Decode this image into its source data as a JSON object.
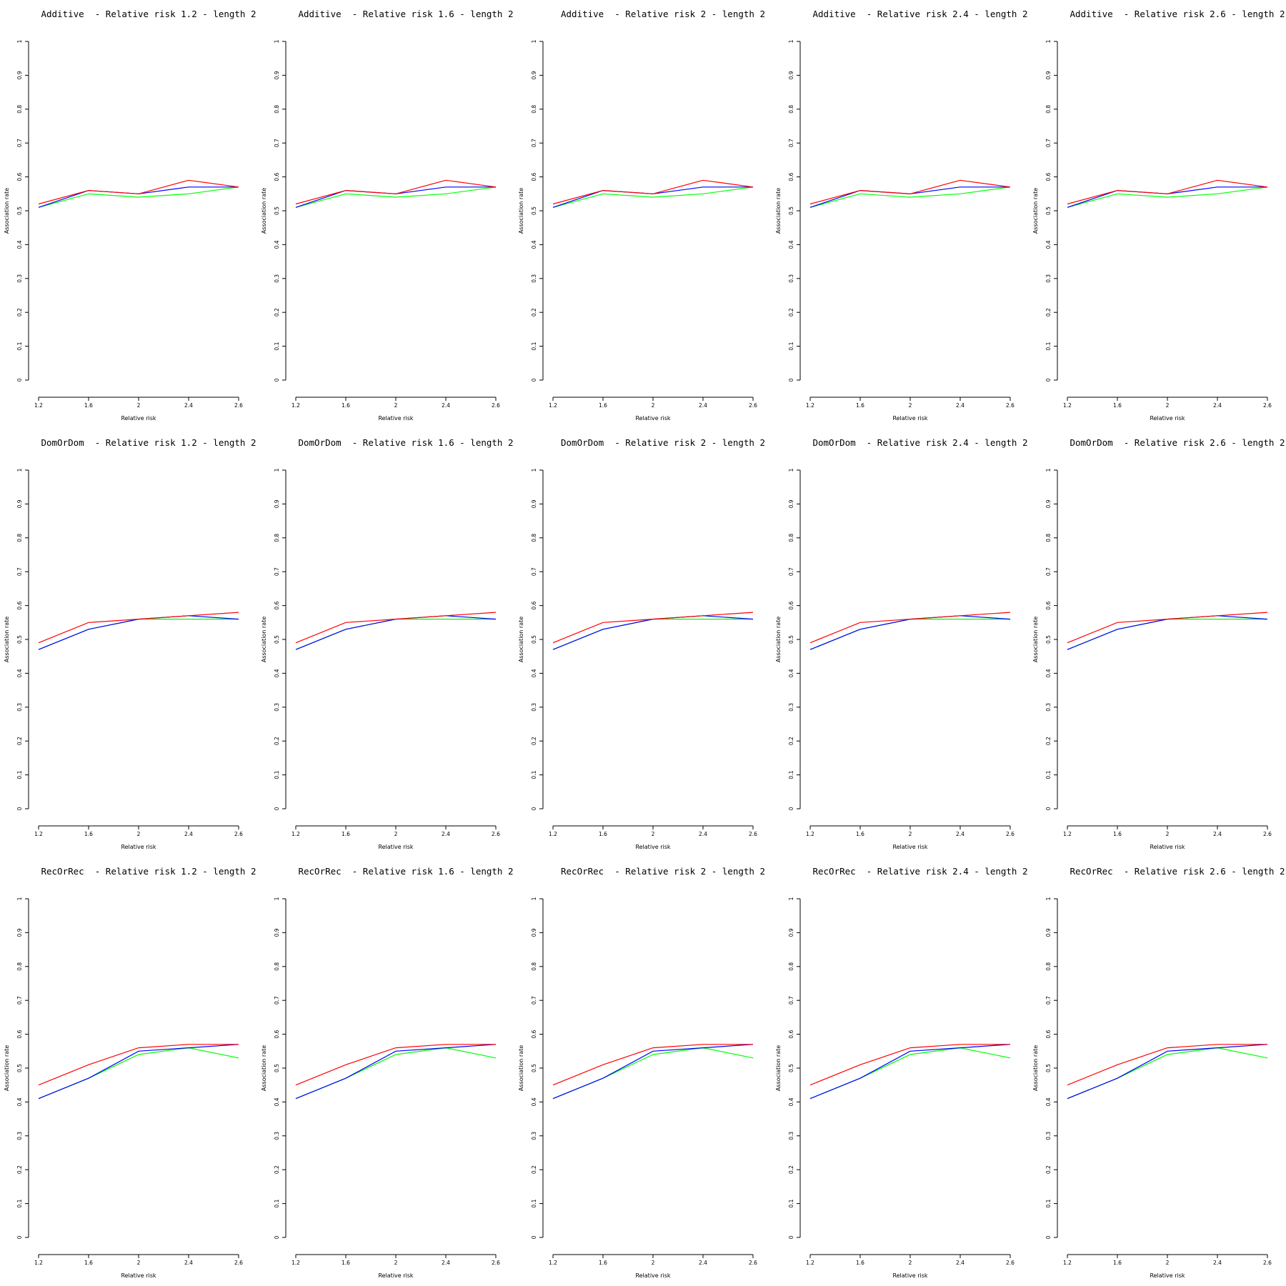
{
  "colors": {
    "series": [
      "#ff0000",
      "#0000ff",
      "#00ff00"
    ],
    "axis": "#000000",
    "background": "#ffffff"
  },
  "chart_data": [
    {
      "type": "line",
      "title": "Additive  - Relative risk 1.2 - length 2",
      "xlabel": "Relative risk",
      "ylabel": "Association rate",
      "x": [
        "1.2",
        "1.6",
        "2",
        "2.4",
        "2.6"
      ],
      "yticks": [
        "0",
        "0.1",
        "0.2",
        "0.3",
        "0.4",
        "0.5",
        "0.6",
        "0.7",
        "0.8",
        "0.9",
        "1"
      ],
      "ylim": [
        0,
        1
      ],
      "series": [
        {
          "color": "#ff0000",
          "values": [
            0.52,
            0.56,
            0.55,
            0.59,
            0.57
          ]
        },
        {
          "color": "#0000ff",
          "values": [
            0.51,
            0.56,
            0.55,
            0.57,
            0.57
          ]
        },
        {
          "color": "#00ff00",
          "values": [
            0.51,
            0.55,
            0.54,
            0.55,
            0.57
          ]
        }
      ]
    },
    {
      "type": "line",
      "title": "Additive  - Relative risk 1.6 - length 2",
      "xlabel": "Relative risk",
      "ylabel": "Association rate",
      "x": [
        "1.2",
        "1.6",
        "2",
        "2.4",
        "2.6"
      ],
      "yticks": [
        "0",
        "0.1",
        "0.2",
        "0.3",
        "0.4",
        "0.5",
        "0.6",
        "0.7",
        "0.8",
        "0.9",
        "1"
      ],
      "ylim": [
        0,
        1
      ],
      "series": [
        {
          "color": "#ff0000",
          "values": [
            0.52,
            0.56,
            0.55,
            0.59,
            0.57
          ]
        },
        {
          "color": "#0000ff",
          "values": [
            0.51,
            0.56,
            0.55,
            0.57,
            0.57
          ]
        },
        {
          "color": "#00ff00",
          "values": [
            0.51,
            0.55,
            0.54,
            0.55,
            0.57
          ]
        }
      ]
    },
    {
      "type": "line",
      "title": "Additive  - Relative risk 2 - length 2",
      "xlabel": "Relative risk",
      "ylabel": "Association rate",
      "x": [
        "1.2",
        "1.6",
        "2",
        "2.4",
        "2.6"
      ],
      "yticks": [
        "0",
        "0.1",
        "0.2",
        "0.3",
        "0.4",
        "0.5",
        "0.6",
        "0.7",
        "0.8",
        "0.9",
        "1"
      ],
      "ylim": [
        0,
        1
      ],
      "series": [
        {
          "color": "#ff0000",
          "values": [
            0.52,
            0.56,
            0.55,
            0.59,
            0.57
          ]
        },
        {
          "color": "#0000ff",
          "values": [
            0.51,
            0.56,
            0.55,
            0.57,
            0.57
          ]
        },
        {
          "color": "#00ff00",
          "values": [
            0.51,
            0.55,
            0.54,
            0.55,
            0.57
          ]
        }
      ]
    },
    {
      "type": "line",
      "title": "Additive  - Relative risk 2.4 - length 2",
      "xlabel": "Relative risk",
      "ylabel": "Association rate",
      "x": [
        "1.2",
        "1.6",
        "2",
        "2.4",
        "2.6"
      ],
      "yticks": [
        "0",
        "0.1",
        "0.2",
        "0.3",
        "0.4",
        "0.5",
        "0.6",
        "0.7",
        "0.8",
        "0.9",
        "1"
      ],
      "ylim": [
        0,
        1
      ],
      "series": [
        {
          "color": "#ff0000",
          "values": [
            0.52,
            0.56,
            0.55,
            0.59,
            0.57
          ]
        },
        {
          "color": "#0000ff",
          "values": [
            0.51,
            0.56,
            0.55,
            0.57,
            0.57
          ]
        },
        {
          "color": "#00ff00",
          "values": [
            0.51,
            0.55,
            0.54,
            0.55,
            0.57
          ]
        }
      ]
    },
    {
      "type": "line",
      "title": "Additive  - Relative risk 2.6 - length 2",
      "xlabel": "Relative risk",
      "ylabel": "Association rate",
      "x": [
        "1.2",
        "1.6",
        "2",
        "2.4",
        "2.6"
      ],
      "yticks": [
        "0",
        "0.1",
        "0.2",
        "0.3",
        "0.4",
        "0.5",
        "0.6",
        "0.7",
        "0.8",
        "0.9",
        "1"
      ],
      "ylim": [
        0,
        1
      ],
      "series": [
        {
          "color": "#ff0000",
          "values": [
            0.52,
            0.56,
            0.55,
            0.59,
            0.57
          ]
        },
        {
          "color": "#0000ff",
          "values": [
            0.51,
            0.56,
            0.55,
            0.57,
            0.57
          ]
        },
        {
          "color": "#00ff00",
          "values": [
            0.51,
            0.55,
            0.54,
            0.55,
            0.57
          ]
        }
      ]
    },
    {
      "type": "line",
      "title": "DomOrDom  - Relative risk 1.2 - length 2",
      "xlabel": "Relative risk",
      "ylabel": "Association rate",
      "x": [
        "1.2",
        "1.6",
        "2",
        "2.4",
        "2.6"
      ],
      "yticks": [
        "0",
        "0.1",
        "0.2",
        "0.3",
        "0.4",
        "0.5",
        "0.6",
        "0.7",
        "0.8",
        "0.9",
        "1"
      ],
      "ylim": [
        0,
        1
      ],
      "series": [
        {
          "color": "#ff0000",
          "values": [
            0.49,
            0.55,
            0.56,
            0.57,
            0.58
          ]
        },
        {
          "color": "#0000ff",
          "values": [
            0.47,
            0.53,
            0.56,
            0.57,
            0.56
          ]
        },
        {
          "color": "#00ff00",
          "values": [
            0.47,
            0.53,
            0.56,
            0.56,
            0.56
          ]
        }
      ]
    },
    {
      "type": "line",
      "title": "DomOrDom  - Relative risk 1.6 - length 2",
      "xlabel": "Relative risk",
      "ylabel": "Association rate",
      "x": [
        "1.2",
        "1.6",
        "2",
        "2.4",
        "2.6"
      ],
      "yticks": [
        "0",
        "0.1",
        "0.2",
        "0.3",
        "0.4",
        "0.5",
        "0.6",
        "0.7",
        "0.8",
        "0.9",
        "1"
      ],
      "ylim": [
        0,
        1
      ],
      "series": [
        {
          "color": "#ff0000",
          "values": [
            0.49,
            0.55,
            0.56,
            0.57,
            0.58
          ]
        },
        {
          "color": "#0000ff",
          "values": [
            0.47,
            0.53,
            0.56,
            0.57,
            0.56
          ]
        },
        {
          "color": "#00ff00",
          "values": [
            0.47,
            0.53,
            0.56,
            0.56,
            0.56
          ]
        }
      ]
    },
    {
      "type": "line",
      "title": "DomOrDom  - Relative risk 2 - length 2",
      "xlabel": "Relative risk",
      "ylabel": "Association rate",
      "x": [
        "1.2",
        "1.6",
        "2",
        "2.4",
        "2.6"
      ],
      "yticks": [
        "0",
        "0.1",
        "0.2",
        "0.3",
        "0.4",
        "0.5",
        "0.6",
        "0.7",
        "0.8",
        "0.9",
        "1"
      ],
      "ylim": [
        0,
        1
      ],
      "series": [
        {
          "color": "#ff0000",
          "values": [
            0.49,
            0.55,
            0.56,
            0.57,
            0.58
          ]
        },
        {
          "color": "#0000ff",
          "values": [
            0.47,
            0.53,
            0.56,
            0.57,
            0.56
          ]
        },
        {
          "color": "#00ff00",
          "values": [
            0.47,
            0.53,
            0.56,
            0.56,
            0.56
          ]
        }
      ]
    },
    {
      "type": "line",
      "title": "DomOrDom  - Relative risk 2.4 - length 2",
      "xlabel": "Relative risk",
      "ylabel": "Association rate",
      "x": [
        "1.2",
        "1.6",
        "2",
        "2.4",
        "2.6"
      ],
      "yticks": [
        "0",
        "0.1",
        "0.2",
        "0.3",
        "0.4",
        "0.5",
        "0.6",
        "0.7",
        "0.8",
        "0.9",
        "1"
      ],
      "ylim": [
        0,
        1
      ],
      "series": [
        {
          "color": "#ff0000",
          "values": [
            0.49,
            0.55,
            0.56,
            0.57,
            0.58
          ]
        },
        {
          "color": "#0000ff",
          "values": [
            0.47,
            0.53,
            0.56,
            0.57,
            0.56
          ]
        },
        {
          "color": "#00ff00",
          "values": [
            0.47,
            0.53,
            0.56,
            0.56,
            0.56
          ]
        }
      ]
    },
    {
      "type": "line",
      "title": "DomOrDom  - Relative risk 2.6 - length 2",
      "xlabel": "Relative risk",
      "ylabel": "Association rate",
      "x": [
        "1.2",
        "1.6",
        "2",
        "2.4",
        "2.6"
      ],
      "yticks": [
        "0",
        "0.1",
        "0.2",
        "0.3",
        "0.4",
        "0.5",
        "0.6",
        "0.7",
        "0.8",
        "0.9",
        "1"
      ],
      "ylim": [
        0,
        1
      ],
      "series": [
        {
          "color": "#ff0000",
          "values": [
            0.49,
            0.55,
            0.56,
            0.57,
            0.58
          ]
        },
        {
          "color": "#0000ff",
          "values": [
            0.47,
            0.53,
            0.56,
            0.57,
            0.56
          ]
        },
        {
          "color": "#00ff00",
          "values": [
            0.47,
            0.53,
            0.56,
            0.56,
            0.56
          ]
        }
      ]
    },
    {
      "type": "line",
      "title": "RecOrRec  - Relative risk 1.2 - length 2",
      "xlabel": "Relative risk",
      "ylabel": "Association rate",
      "x": [
        "1.2",
        "1.6",
        "2",
        "2.4",
        "2.6"
      ],
      "yticks": [
        "0",
        "0.1",
        "0.2",
        "0.3",
        "0.4",
        "0.5",
        "0.6",
        "0.7",
        "0.8",
        "0.9",
        "1"
      ],
      "ylim": [
        0,
        1
      ],
      "series": [
        {
          "color": "#ff0000",
          "values": [
            0.45,
            0.51,
            0.56,
            0.57,
            0.57
          ]
        },
        {
          "color": "#0000ff",
          "values": [
            0.41,
            0.47,
            0.55,
            0.56,
            0.57
          ]
        },
        {
          "color": "#00ff00",
          "values": [
            0.41,
            0.47,
            0.54,
            0.56,
            0.53
          ]
        }
      ]
    },
    {
      "type": "line",
      "title": "RecOrRec  - Relative risk 1.6 - length 2",
      "xlabel": "Relative risk",
      "ylabel": "Association rate",
      "x": [
        "1.2",
        "1.6",
        "2",
        "2.4",
        "2.6"
      ],
      "yticks": [
        "0",
        "0.1",
        "0.2",
        "0.3",
        "0.4",
        "0.5",
        "0.6",
        "0.7",
        "0.8",
        "0.9",
        "1"
      ],
      "ylim": [
        0,
        1
      ],
      "series": [
        {
          "color": "#ff0000",
          "values": [
            0.45,
            0.51,
            0.56,
            0.57,
            0.57
          ]
        },
        {
          "color": "#0000ff",
          "values": [
            0.41,
            0.47,
            0.55,
            0.56,
            0.57
          ]
        },
        {
          "color": "#00ff00",
          "values": [
            0.41,
            0.47,
            0.54,
            0.56,
            0.53
          ]
        }
      ]
    },
    {
      "type": "line",
      "title": "RecOrRec  - Relative risk 2 - length 2",
      "xlabel": "Relative risk",
      "ylabel": "Association rate",
      "x": [
        "1.2",
        "1.6",
        "2",
        "2.4",
        "2.6"
      ],
      "yticks": [
        "0",
        "0.1",
        "0.2",
        "0.3",
        "0.4",
        "0.5",
        "0.6",
        "0.7",
        "0.8",
        "0.9",
        "1"
      ],
      "ylim": [
        0,
        1
      ],
      "series": [
        {
          "color": "#ff0000",
          "values": [
            0.45,
            0.51,
            0.56,
            0.57,
            0.57
          ]
        },
        {
          "color": "#0000ff",
          "values": [
            0.41,
            0.47,
            0.55,
            0.56,
            0.57
          ]
        },
        {
          "color": "#00ff00",
          "values": [
            0.41,
            0.47,
            0.54,
            0.56,
            0.53
          ]
        }
      ]
    },
    {
      "type": "line",
      "title": "RecOrRec  - Relative risk 2.4 - length 2",
      "xlabel": "Relative risk",
      "ylabel": "Association rate",
      "x": [
        "1.2",
        "1.6",
        "2",
        "2.4",
        "2.6"
      ],
      "yticks": [
        "0",
        "0.1",
        "0.2",
        "0.3",
        "0.4",
        "0.5",
        "0.6",
        "0.7",
        "0.8",
        "0.9",
        "1"
      ],
      "ylim": [
        0,
        1
      ],
      "series": [
        {
          "color": "#ff0000",
          "values": [
            0.45,
            0.51,
            0.56,
            0.57,
            0.57
          ]
        },
        {
          "color": "#0000ff",
          "values": [
            0.41,
            0.47,
            0.55,
            0.56,
            0.57
          ]
        },
        {
          "color": "#00ff00",
          "values": [
            0.41,
            0.47,
            0.54,
            0.56,
            0.53
          ]
        }
      ]
    },
    {
      "type": "line",
      "title": "RecOrRec  - Relative risk 2.6 - length 2",
      "xlabel": "Relative risk",
      "ylabel": "Association rate",
      "x": [
        "1.2",
        "1.6",
        "2",
        "2.4",
        "2.6"
      ],
      "yticks": [
        "0",
        "0.1",
        "0.2",
        "0.3",
        "0.4",
        "0.5",
        "0.6",
        "0.7",
        "0.8",
        "0.9",
        "1"
      ],
      "ylim": [
        0,
        1
      ],
      "series": [
        {
          "color": "#ff0000",
          "values": [
            0.45,
            0.51,
            0.56,
            0.57,
            0.57
          ]
        },
        {
          "color": "#0000ff",
          "values": [
            0.41,
            0.47,
            0.55,
            0.56,
            0.57
          ]
        },
        {
          "color": "#00ff00",
          "values": [
            0.41,
            0.47,
            0.54,
            0.56,
            0.53
          ]
        }
      ]
    }
  ]
}
